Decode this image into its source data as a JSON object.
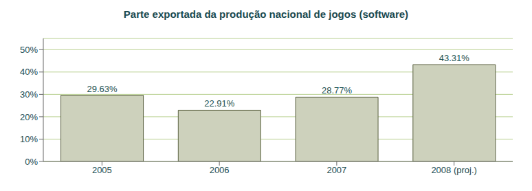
{
  "chart_data": {
    "type": "bar",
    "title": "Parte exportada da produção nacional de jogos (software)",
    "categories": [
      "2005",
      "2006",
      "2007",
      "2008 (proj.)"
    ],
    "values": [
      29.63,
      22.91,
      28.77,
      43.31
    ],
    "value_labels": [
      "29.63%",
      "22.91%",
      "28.77%",
      "43.31%"
    ],
    "data_labels": true,
    "color": "#cdd1bc",
    "ylim": [
      0,
      55
    ],
    "yticks": [
      {
        "value": 0,
        "label": "0%"
      },
      {
        "value": 10,
        "label": "10%"
      },
      {
        "value": 20,
        "label": "20%"
      },
      {
        "value": 30,
        "label": "30%"
      },
      {
        "value": 40,
        "label": "40%"
      },
      {
        "value": 50,
        "label": "50%"
      }
    ],
    "grid": true
  }
}
